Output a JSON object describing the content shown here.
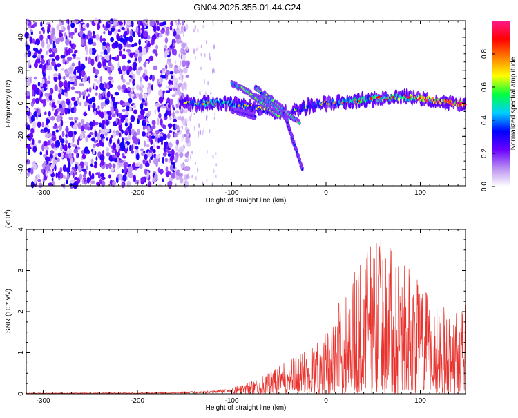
{
  "figure": {
    "title": "GN04.2025.355.01.44.C24"
  },
  "chart_data": [
    {
      "type": "heatmap",
      "name": "spectrogram",
      "xlabel": "Height of straight line (km)",
      "ylabel": "Frequency (Hz)",
      "xlim": [
        -318,
        148
      ],
      "ylim": [
        -50,
        50
      ],
      "xticks": [
        -300,
        -200,
        -100,
        0,
        100
      ],
      "yticks": [
        -40,
        -20,
        0,
        20,
        40
      ],
      "colorbar": {
        "label": "Normalized spectral amplitude",
        "range": [
          0,
          1
        ],
        "ticks": [
          "0.0",
          "0.2",
          "0.4",
          "0.6",
          "0.8"
        ],
        "colors": [
          "#ffffff",
          "#b98ef0",
          "#6a00ff",
          "#0000ff",
          "#00d0ff",
          "#00ff40",
          "#ffff00",
          "#ff8000",
          "#ff0000",
          "#ff1a8c"
        ]
      },
      "noise_region": {
        "x_from": -318,
        "x_to": -160,
        "description_level": 0.25
      },
      "ridge": [
        {
          "x": -155,
          "y": 0,
          "amp": 0.35
        },
        {
          "x": -130,
          "y": 0,
          "amp": 0.45
        },
        {
          "x": -110,
          "y": 0,
          "amp": 0.5
        },
        {
          "x": -90,
          "y": -1,
          "amp": 0.45
        },
        {
          "x": -80,
          "y": -2,
          "amp": 0.4
        },
        {
          "x": -60,
          "y": -4,
          "amp": 0.35
        },
        {
          "x": -40,
          "y": -6,
          "amp": 0.3
        },
        {
          "x": -20,
          "y": -2,
          "amp": 0.35
        },
        {
          "x": 0,
          "y": 0,
          "amp": 0.45
        },
        {
          "x": 20,
          "y": 1,
          "amp": 0.5
        },
        {
          "x": 40,
          "y": 2,
          "amp": 0.55
        },
        {
          "x": 60,
          "y": 3,
          "amp": 0.6
        },
        {
          "x": 80,
          "y": 4,
          "amp": 0.6
        },
        {
          "x": 100,
          "y": 3,
          "amp": 0.65
        },
        {
          "x": 120,
          "y": 1,
          "amp": 0.75
        },
        {
          "x": 148,
          "y": -1,
          "amp": 0.85
        }
      ],
      "branches": [
        {
          "x0": -100,
          "y0": 12,
          "x1": -60,
          "y1": 0,
          "amp": 0.5
        },
        {
          "x0": -90,
          "y0": 10,
          "x1": -50,
          "y1": -8,
          "amp": 0.55
        },
        {
          "x0": -75,
          "y0": 10,
          "x1": -40,
          "y1": -10,
          "amp": 0.5
        },
        {
          "x0": -65,
          "y0": 6,
          "x1": -28,
          "y1": -12,
          "amp": 0.55
        },
        {
          "x0": -45,
          "y0": -5,
          "x1": -25,
          "y1": -40,
          "amp": 0.3
        },
        {
          "x0": -100,
          "y0": -4,
          "x1": -75,
          "y1": -8,
          "amp": 0.3
        }
      ]
    },
    {
      "type": "line",
      "name": "snr",
      "xlabel": "Height of straight line (km)",
      "ylabel": "SNR (10 * v/v)",
      "multiplier": "(x10",
      "multiplier_exp": "4",
      "xlim": [
        -318,
        148
      ],
      "ylim": [
        0,
        4
      ],
      "xticks": [
        -300,
        -200,
        -100,
        0,
        100
      ],
      "yticks": [
        0,
        1,
        2,
        3,
        4
      ],
      "color": "#e8332e",
      "envelope": [
        {
          "x": -318,
          "y": 0.02
        },
        {
          "x": -200,
          "y": 0.03
        },
        {
          "x": -150,
          "y": 0.05
        },
        {
          "x": -120,
          "y": 0.08
        },
        {
          "x": -100,
          "y": 0.15
        },
        {
          "x": -80,
          "y": 0.3
        },
        {
          "x": -60,
          "y": 0.55
        },
        {
          "x": -40,
          "y": 0.8
        },
        {
          "x": -20,
          "y": 1.1
        },
        {
          "x": 0,
          "y": 1.5
        },
        {
          "x": 20,
          "y": 2.6
        },
        {
          "x": 40,
          "y": 3.4
        },
        {
          "x": 55,
          "y": 4.0
        },
        {
          "x": 70,
          "y": 3.5
        },
        {
          "x": 90,
          "y": 3.0
        },
        {
          "x": 110,
          "y": 2.4
        },
        {
          "x": 130,
          "y": 2.0
        },
        {
          "x": 148,
          "y": 2.2
        }
      ]
    }
  ]
}
